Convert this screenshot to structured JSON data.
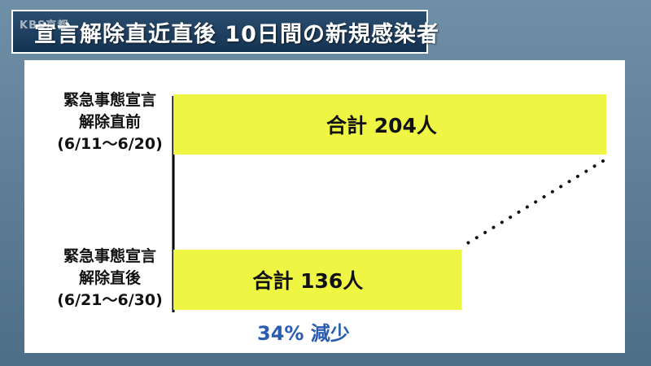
{
  "header": {
    "logo": "KBS京都",
    "title": "宣言解除直近直後 10日間の新規感染者"
  },
  "chart_data": {
    "type": "bar",
    "orientation": "horizontal",
    "categories": [
      [
        "緊急事態宣言",
        "解除直前",
        "(6/11〜6/20)"
      ],
      [
        "緊急事態宣言",
        "解除直後",
        "(6/21〜6/30)"
      ]
    ],
    "values": [
      204,
      136
    ],
    "data_labels": [
      "合計 204人",
      "合計 136人"
    ],
    "annotation": "34% 減少",
    "bar_color": "#eef542",
    "note_color": "#2a5db0"
  }
}
